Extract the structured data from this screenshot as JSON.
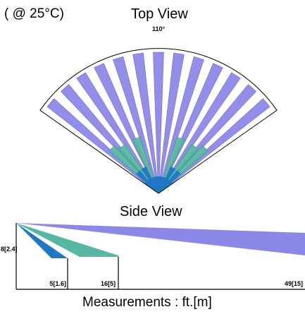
{
  "header": {
    "temperature_note": "( @ 25°C)",
    "top_view_title": "Top View"
  },
  "top_view": {
    "angle_label": "110°",
    "colors": {
      "far_beams": "#8c88e8",
      "mid_beams": "#58b7a2",
      "near_beams": "#1f78c4",
      "outline": "#000000"
    }
  },
  "side_view": {
    "title": "Side View",
    "height_label": "8[2.4]",
    "distance_labels": [
      "5[1.6]",
      "16[5]",
      "49[15]"
    ]
  },
  "footer": {
    "measurements_note": "Measurements : ft.[m]"
  }
}
